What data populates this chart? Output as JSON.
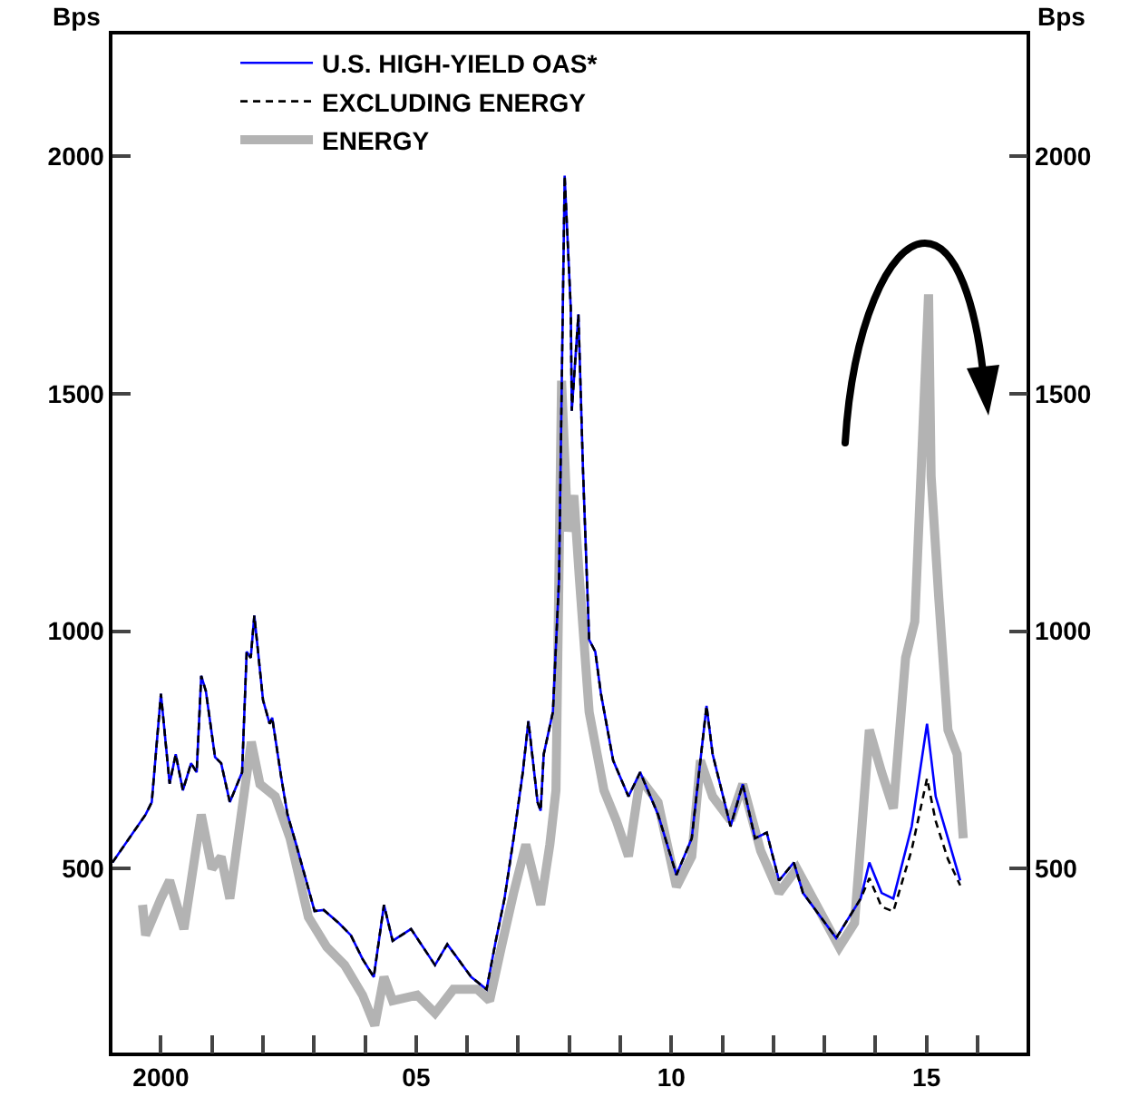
{
  "chart_data": {
    "type": "line",
    "ylabel": "Bps",
    "y2label": "Bps",
    "legend": "top left",
    "xlim": [
      1999.05,
      2016.96
    ],
    "xticks": [
      {
        "value": 2000,
        "label": "2000"
      },
      {
        "value": 2001,
        "label": null
      },
      {
        "value": 2002,
        "label": null
      },
      {
        "value": 2003,
        "label": null
      },
      {
        "value": 2004,
        "label": null
      },
      {
        "value": 2005,
        "label": "05"
      },
      {
        "value": 2006,
        "label": null
      },
      {
        "value": 2007,
        "label": null
      },
      {
        "value": 2008,
        "label": null
      },
      {
        "value": 2009,
        "label": null
      },
      {
        "value": 2010,
        "label": "10"
      },
      {
        "value": 2011,
        "label": null
      },
      {
        "value": 2012,
        "label": null
      },
      {
        "value": 2013,
        "label": null
      },
      {
        "value": 2014,
        "label": null
      },
      {
        "value": 2015,
        "label": "15"
      },
      {
        "value": 2016,
        "label": null
      }
    ],
    "ylim": [
      113,
      2256
    ],
    "yticks": [
      500,
      1000,
      1500,
      2000
    ],
    "y2lim": [
      113,
      2256
    ],
    "y2ticks": [
      500,
      1000,
      1500,
      2000
    ],
    "series": [
      {
        "name": "U.S. HIGH-YIELD OAS*",
        "color": "#0000ff",
        "line_style": "solid",
        "x": [
          1999.05,
          1999.7,
          1999.82,
          2000.0,
          2000.17,
          2000.29,
          2000.43,
          2000.59,
          2000.7,
          2000.79,
          2000.88,
          2001.06,
          2001.18,
          2001.35,
          2001.59,
          2001.68,
          2001.76,
          2001.83,
          2002.0,
          2002.13,
          2002.18,
          2002.36,
          2002.48,
          2002.65,
          2003.01,
          2003.19,
          2003.48,
          2003.72,
          2003.95,
          2004.17,
          2004.37,
          2004.54,
          2004.9,
          2005.37,
          2005.61,
          2006.08,
          2006.38,
          2006.56,
          2006.73,
          2006.91,
          2007.09,
          2007.2,
          2007.38,
          2007.44,
          2007.5,
          2007.68,
          2007.8,
          2007.91,
          2008.03,
          2008.05,
          2008.18,
          2008.27,
          2008.39,
          2008.51,
          2008.62,
          2008.86,
          2009.16,
          2009.39,
          2009.74,
          2010.1,
          2010.4,
          2010.57,
          2010.69,
          2010.81,
          2011.16,
          2011.4,
          2011.64,
          2011.87,
          2012.11,
          2012.4,
          2012.58,
          2013.23,
          2013.71,
          2013.88,
          2014.12,
          2014.35,
          2014.71,
          2015.01,
          2015.18,
          2015.42,
          2015.66
        ],
        "values": [
          513,
          614,
          640,
          868,
          679,
          741,
          665,
          722,
          703,
          906,
          874,
          735,
          722,
          640,
          703,
          957,
          944,
          1033,
          855,
          805,
          818,
          690,
          614,
          551,
          411,
          413,
          386,
          360,
          310,
          272,
          424,
          348,
          373,
          297,
          341,
          272,
          246,
          348,
          436,
          564,
          703,
          811,
          640,
          622,
          741,
          830,
          1109,
          1959,
          1680,
          1464,
          1667,
          1337,
          982,
          957,
          869,
          728,
          652,
          703,
          614,
          487,
          564,
          728,
          843,
          741,
          589,
          678,
          564,
          576,
          475,
          513,
          449,
          354,
          437,
          513,
          449,
          437,
          589,
          805,
          652,
          564,
          475
        ]
      },
      {
        "name": "EXCLUDING ENERGY",
        "color": "#000000",
        "line_style": "dashed",
        "x": [
          1999.05,
          1999.7,
          1999.82,
          2000.0,
          2000.17,
          2000.29,
          2000.43,
          2000.59,
          2000.7,
          2000.79,
          2000.88,
          2001.06,
          2001.18,
          2001.35,
          2001.59,
          2001.68,
          2001.76,
          2001.83,
          2002.0,
          2002.13,
          2002.18,
          2002.36,
          2002.48,
          2002.65,
          2003.01,
          2003.19,
          2003.48,
          2003.72,
          2003.95,
          2004.17,
          2004.37,
          2004.54,
          2004.9,
          2005.37,
          2005.61,
          2006.08,
          2006.38,
          2006.56,
          2006.73,
          2006.91,
          2007.09,
          2007.2,
          2007.38,
          2007.44,
          2007.5,
          2007.68,
          2007.8,
          2007.91,
          2008.03,
          2008.05,
          2008.18,
          2008.27,
          2008.39,
          2008.51,
          2008.62,
          2008.86,
          2009.16,
          2009.39,
          2009.74,
          2010.1,
          2010.4,
          2010.57,
          2010.69,
          2010.81,
          2011.16,
          2011.4,
          2011.64,
          2011.87,
          2012.11,
          2012.4,
          2012.58,
          2013.23,
          2013.71,
          2013.88,
          2014.12,
          2014.35,
          2014.71,
          2015.01,
          2015.18,
          2015.42,
          2015.66
        ],
        "values": [
          513,
          614,
          640,
          868,
          679,
          741,
          665,
          722,
          703,
          906,
          874,
          735,
          722,
          640,
          703,
          957,
          944,
          1033,
          855,
          805,
          818,
          690,
          614,
          551,
          411,
          413,
          386,
          360,
          310,
          272,
          424,
          348,
          373,
          297,
          341,
          272,
          246,
          348,
          436,
          564,
          703,
          811,
          640,
          622,
          741,
          830,
          1109,
          1959,
          1680,
          1464,
          1667,
          1337,
          982,
          957,
          869,
          728,
          652,
          703,
          614,
          487,
          564,
          728,
          843,
          741,
          589,
          678,
          564,
          576,
          475,
          513,
          449,
          354,
          437,
          480,
          420,
          410,
          540,
          690,
          600,
          520,
          465
        ]
      },
      {
        "name": "ENERGY",
        "color": "#b3b3b3",
        "line_style": "solid",
        "x": [
          1999.64,
          1999.7,
          2000.0,
          2000.17,
          2000.45,
          2000.79,
          2001.0,
          2001.18,
          2001.35,
          2001.59,
          2001.77,
          2001.94,
          2002.24,
          2002.53,
          2002.89,
          2003.25,
          2003.6,
          2003.95,
          2004.19,
          2004.37,
          2004.54,
          2005.02,
          2005.37,
          2005.73,
          2006.2,
          2006.44,
          2006.67,
          2006.91,
          2007.15,
          2007.44,
          2007.62,
          2007.74,
          2007.85,
          2007.97,
          2008.09,
          2008.2,
          2008.39,
          2008.68,
          2008.92,
          2009.16,
          2009.39,
          2009.74,
          2010.1,
          2010.4,
          2010.57,
          2010.81,
          2011.16,
          2011.4,
          2011.75,
          2012.11,
          2012.46,
          2013.29,
          2013.59,
          2013.88,
          2014.12,
          2014.35,
          2014.59,
          2014.77,
          2014.89,
          2015.04,
          2015.09,
          2015.24,
          2015.42,
          2015.6,
          2015.72
        ],
        "values": [
          424,
          360,
          437,
          475,
          373,
          614,
          500,
          525,
          437,
          627,
          767,
          678,
          652,
          564,
          398,
          335,
          297,
          234,
          170,
          272,
          222,
          234,
          196,
          246,
          246,
          222,
          335,
          449,
          551,
          424,
          551,
          665,
          1527,
          1210,
          1286,
          1109,
          830,
          665,
          602,
          526,
          690,
          640,
          462,
          526,
          728,
          652,
          602,
          678,
          538,
          449,
          500,
          335,
          386,
          792,
          703,
          627,
          944,
          1020,
          1326,
          1709,
          1326,
          1070,
          792,
          741,
          564
        ]
      }
    ]
  }
}
